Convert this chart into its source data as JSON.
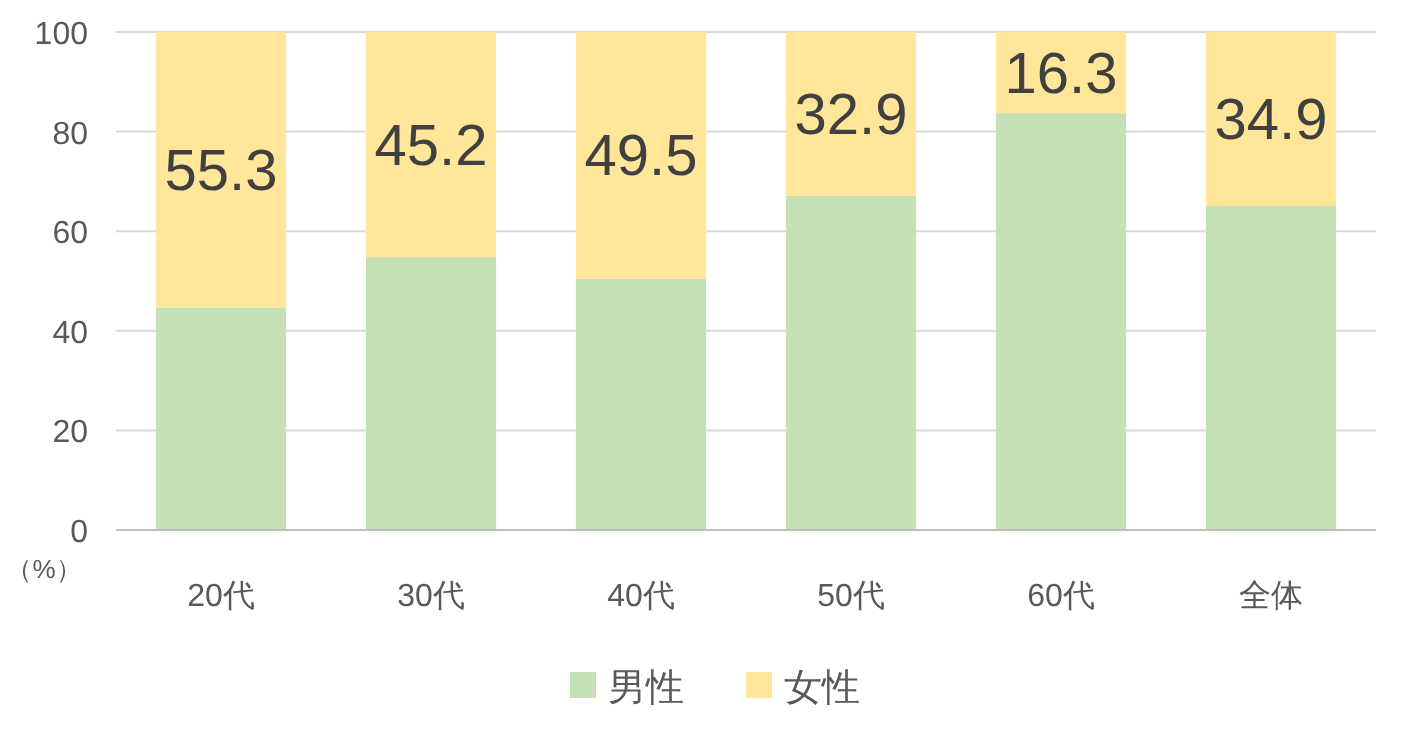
{
  "chart_data": {
    "type": "bar",
    "stacked": true,
    "ylabel": "（%）",
    "categories": [
      "20代",
      "30代",
      "40代",
      "50代",
      "60代",
      "全体"
    ],
    "series": [
      {
        "name": "男性",
        "color": "#c5e0b4",
        "values": [
          44.7,
          54.8,
          50.5,
          67.1,
          83.7,
          65.1
        ]
      },
      {
        "name": "女性",
        "color": "#ffe699",
        "values": [
          55.3,
          45.2,
          49.5,
          32.9,
          16.3,
          34.9
        ],
        "value_labels": [
          "55.3",
          "45.2",
          "49.5",
          "32.9",
          "16.3",
          "34.9"
        ]
      }
    ],
    "ylim": [
      0,
      100
    ],
    "yticks": [
      0,
      20,
      40,
      60,
      80,
      100
    ],
    "grid": "y",
    "legend": "bottom"
  }
}
